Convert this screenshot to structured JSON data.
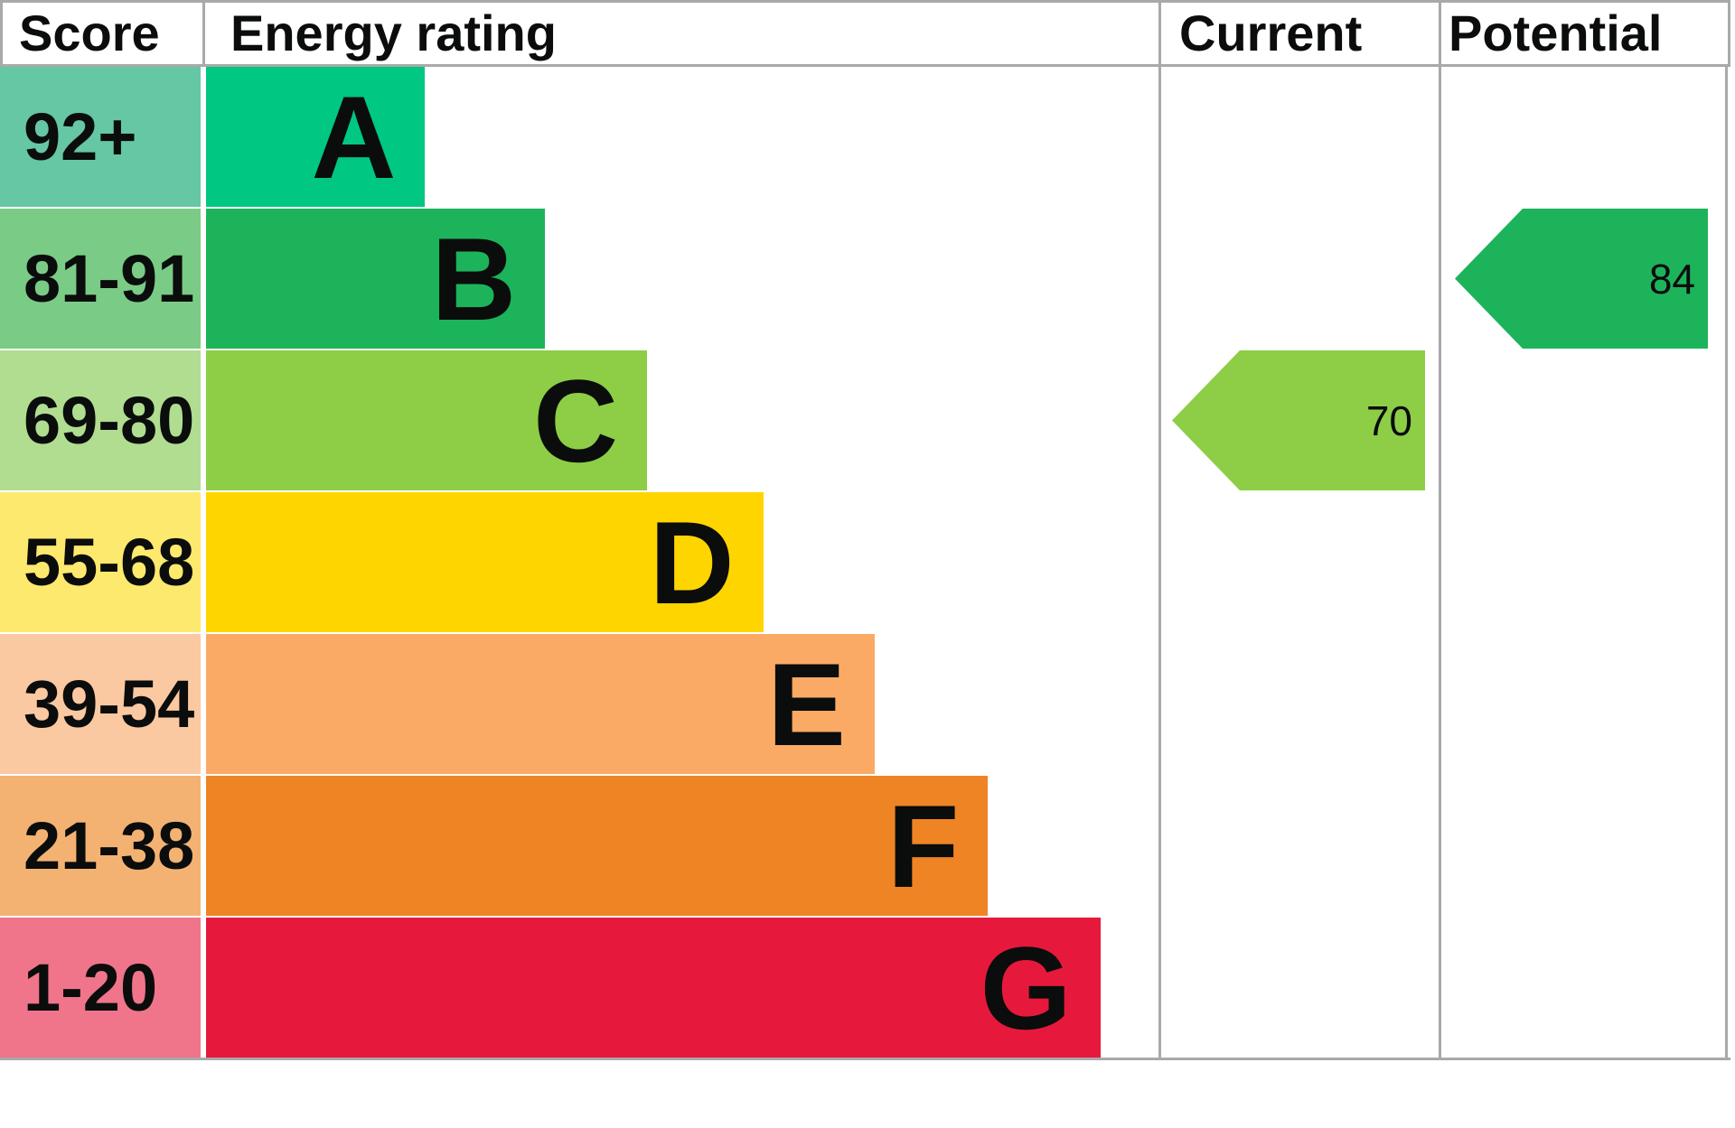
{
  "title": "Energy performance certificate rating chart",
  "header": {
    "score": "Score",
    "energy_rating": "Energy rating",
    "current": "Current",
    "potential": "Potential"
  },
  "colors": {
    "border": "#a9a9ac",
    "text": "#0b0c0c",
    "background": "#ffffff"
  },
  "bands": [
    {
      "letter": "A",
      "score": "92+",
      "bar_color": "#00c782",
      "score_cell_color": "#65c7a3",
      "bar_width_pct": 23.0
    },
    {
      "letter": "B",
      "score": "81-91",
      "bar_color": "#1db35b",
      "score_cell_color": "#7acb86",
      "bar_width_pct": 35.6
    },
    {
      "letter": "C",
      "score": "69-80",
      "bar_color": "#8dce46",
      "score_cell_color": "#b0dd90",
      "bar_width_pct": 46.3
    },
    {
      "letter": "D",
      "score": "55-68",
      "bar_color": "#ffd500",
      "score_cell_color": "#fde96e",
      "bar_width_pct": 58.5
    },
    {
      "letter": "E",
      "score": "39-54",
      "bar_color": "#fbaa65",
      "score_cell_color": "#fbc9a1",
      "bar_width_pct": 70.2
    },
    {
      "letter": "F",
      "score": "21-38",
      "bar_color": "#ee8424",
      "score_cell_color": "#f4b272",
      "bar_width_pct": 82.1
    },
    {
      "letter": "G",
      "score": "1-20",
      "bar_color": "#e6193c",
      "score_cell_color": "#f0758a",
      "bar_width_pct": 93.9
    }
  ],
  "current": {
    "label": "Current",
    "value": "70",
    "band": "C",
    "row_index": 2,
    "color": "#8dce46"
  },
  "potential": {
    "label": "Potential",
    "value": "84",
    "band": "B",
    "row_index": 1,
    "color": "#1db35b"
  },
  "chart_data": {
    "type": "bar",
    "title": "Energy rating",
    "categories": [
      "A",
      "B",
      "C",
      "D",
      "E",
      "F",
      "G"
    ],
    "score_ranges": [
      "92+",
      "81-91",
      "69-80",
      "55-68",
      "39-54",
      "21-38",
      "1-20"
    ],
    "bar_width_pct": [
      23.0,
      35.6,
      46.3,
      58.5,
      70.2,
      82.1,
      93.9
    ],
    "band_colors": [
      "#00c782",
      "#1db35b",
      "#8dce46",
      "#ffd500",
      "#fbaa65",
      "#ee8424",
      "#e6193c"
    ],
    "markers": [
      {
        "label": "Current",
        "value": 70,
        "band": "C"
      },
      {
        "label": "Potential",
        "value": 84,
        "band": "B"
      }
    ],
    "legend_position": "none",
    "grid": false
  }
}
